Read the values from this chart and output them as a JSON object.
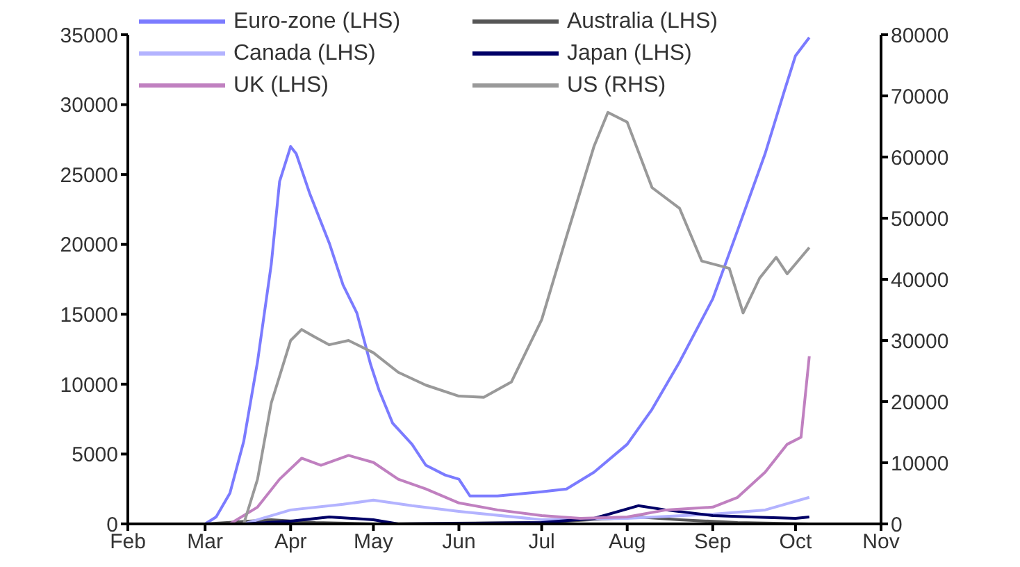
{
  "chart_data": {
    "type": "line",
    "xlim": [
      "--02-01",
      "--11-01"
    ],
    "xticks": [
      {
        "value": "--02-01",
        "label": "Feb"
      },
      {
        "value": "--03-01",
        "label": "Mar"
      },
      {
        "value": "--04-01",
        "label": "Apr"
      },
      {
        "value": "--05-01",
        "label": "May"
      },
      {
        "value": "--06-01",
        "label": "Jun"
      },
      {
        "value": "--07-01",
        "label": "Jul"
      },
      {
        "value": "--08-01",
        "label": "Aug"
      },
      {
        "value": "--09-01",
        "label": "Sep"
      },
      {
        "value": "--10-01",
        "label": "Oct"
      },
      {
        "value": "--11-01",
        "label": "Nov"
      }
    ],
    "ylim": [
      0,
      35000
    ],
    "yticks": [
      0,
      5000,
      10000,
      15000,
      20000,
      25000,
      30000,
      35000
    ],
    "y2lim": [
      0,
      80000
    ],
    "y2ticks": [
      0,
      10000,
      20000,
      30000,
      40000,
      50000,
      60000,
      70000,
      80000
    ],
    "grid": false,
    "legend": "top",
    "marker": "none",
    "line_style": "solid",
    "series": [
      {
        "name": "Euro-zone (LHS)",
        "color": "#7b7bff",
        "x": [
          "--02-01",
          "--03-01",
          "--03-05",
          "--03-10",
          "--03-15",
          "--03-20",
          "--03-25",
          "--03-28",
          "--04-01",
          "--04-03",
          "--04-08",
          "--04-15",
          "--04-20",
          "--04-25",
          "--04-30",
          "--05-03",
          "--05-08",
          "--05-15",
          "--05-20",
          "--05-27",
          "--06-01",
          "--06-05",
          "--06-15",
          "--07-01",
          "--07-10",
          "--07-20",
          "--08-01",
          "--08-10",
          "--08-20",
          "--09-01",
          "--09-10",
          "--09-20",
          "--09-27",
          "--10-01",
          "--10-06"
        ],
        "values": [
          0,
          0,
          500,
          2200,
          5900,
          11600,
          18600,
          24500,
          27000,
          26500,
          23600,
          20100,
          17100,
          15100,
          11400,
          9600,
          7200,
          5700,
          4200,
          3500,
          3200,
          2000,
          2000,
          2300,
          2500,
          3700,
          5700,
          8200,
          11600,
          16100,
          21000,
          26500,
          31000,
          33500,
          34800
        ]
      },
      {
        "name": "Australia (LHS)",
        "color": "#555555",
        "x": [
          "--02-01",
          "--03-01",
          "--03-25",
          "--04-10",
          "--05-01",
          "--07-01",
          "--08-05",
          "--08-20",
          "--09-10",
          "--10-06"
        ],
        "values": [
          0,
          0,
          300,
          100,
          0,
          100,
          500,
          300,
          100,
          0
        ]
      },
      {
        "name": "Canada (LHS)",
        "color": "#b3b3ff",
        "x": [
          "--02-01",
          "--03-15",
          "--04-01",
          "--04-20",
          "--05-01",
          "--05-15",
          "--06-01",
          "--07-01",
          "--08-01",
          "--09-01",
          "--09-20",
          "--10-06"
        ],
        "values": [
          0,
          0,
          1000,
          1400,
          1700,
          1300,
          900,
          300,
          400,
          700,
          1000,
          1900
        ]
      },
      {
        "name": "Japan (LHS)",
        "color": "#000066",
        "x": [
          "--03-15",
          "--04-01",
          "--04-15",
          "--05-01",
          "--05-10",
          "--07-01",
          "--07-20",
          "--08-05",
          "--08-15",
          "--09-01",
          "--09-15",
          "--10-01",
          "--10-06"
        ],
        "values": [
          0,
          200,
          500,
          300,
          0,
          100,
          400,
          1300,
          1000,
          600,
          500,
          400,
          500
        ]
      },
      {
        "name": "UK (LHS)",
        "color": "#c080c0",
        "x": [
          "--03-10",
          "--03-20",
          "--03-28",
          "--04-05",
          "--04-12",
          "--04-22",
          "--05-01",
          "--05-10",
          "--05-20",
          "--06-01",
          "--06-15",
          "--07-01",
          "--07-15",
          "--08-01",
          "--08-15",
          "--09-01",
          "--09-10",
          "--09-20",
          "--09-28",
          "--10-03",
          "--10-06"
        ],
        "values": [
          0,
          1200,
          3200,
          4700,
          4200,
          4900,
          4400,
          3200,
          2500,
          1500,
          1000,
          600,
          400,
          500,
          1000,
          1200,
          1900,
          3700,
          5700,
          6200,
          12000
        ]
      },
      {
        "name": "US (RHS)",
        "color": "#999999",
        "axis": "y2",
        "x": [
          "--02-01",
          "--03-15",
          "--03-20",
          "--03-25",
          "--04-01",
          "--04-05",
          "--04-10",
          "--04-15",
          "--04-22",
          "--05-01",
          "--05-10",
          "--05-20",
          "--06-01",
          "--06-10",
          "--06-20",
          "--07-01",
          "--07-10",
          "--07-20",
          "--07-25",
          "--08-01",
          "--08-10",
          "--08-20",
          "--08-28",
          "--09-07",
          "--09-12",
          "--09-18",
          "--09-24",
          "--09-28",
          "--10-06"
        ],
        "values": [
          0,
          0,
          7300,
          19800,
          30000,
          31800,
          30500,
          29300,
          30000,
          28000,
          24800,
          22700,
          20900,
          20700,
          23200,
          33400,
          47000,
          61800,
          67300,
          65700,
          55000,
          51600,
          43000,
          41800,
          34500,
          40200,
          43600,
          40900,
          45200
        ]
      }
    ]
  }
}
